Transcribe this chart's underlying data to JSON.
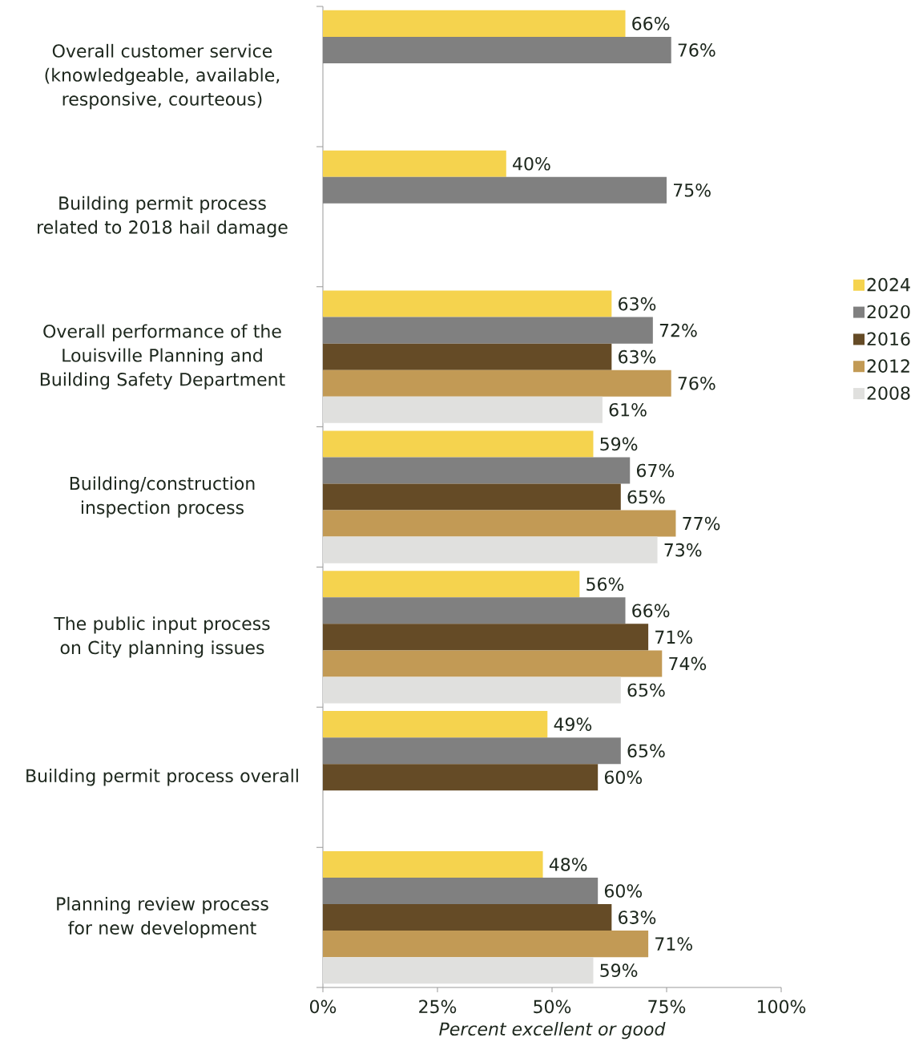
{
  "chart_data": {
    "type": "bar",
    "orientation": "horizontal",
    "categories": [
      "Overall customer service (knowledgeable, available, responsive, courteous)",
      "Building permit process related to 2018 hail damage",
      "Overall performance of the Louisville Planning and Building Safety Department",
      "Building/construction inspection process",
      "The public input process on City planning issues",
      "Building permit process overall",
      "Planning review process for new development"
    ],
    "series": [
      {
        "name": "2024",
        "color": "#f5d34e",
        "values": [
          66,
          40,
          63,
          59,
          56,
          49,
          48
        ],
        "value_labels": [
          "66%",
          "40%",
          "63%",
          "59%",
          "56%",
          "49%",
          "48%"
        ]
      },
      {
        "name": "2020",
        "color": "#808080",
        "values": [
          76,
          75,
          72,
          67,
          66,
          65,
          60
        ],
        "value_labels": [
          "76%",
          "75%",
          "72%",
          "67%",
          "66%",
          "65%",
          "60%"
        ]
      },
      {
        "name": "2016",
        "color": "#654b26",
        "values": [
          null,
          null,
          63,
          65,
          71,
          60,
          63
        ],
        "value_labels": [
          null,
          null,
          "63%",
          "65%",
          "71%",
          "60%",
          "63%"
        ]
      },
      {
        "name": "2012",
        "color": "#c29a55",
        "values": [
          null,
          null,
          76,
          77,
          74,
          null,
          71
        ],
        "value_labels": [
          null,
          null,
          "76%",
          "77%",
          "74%",
          null,
          "71%"
        ]
      },
      {
        "name": "2008",
        "color": "#e0e0de",
        "values": [
          null,
          null,
          61,
          73,
          65,
          null,
          59
        ],
        "value_labels": [
          null,
          null,
          "61%",
          "73%",
          "65%",
          null,
          "59%"
        ]
      }
    ],
    "xlim": [
      0,
      100
    ],
    "xticks": [
      {
        "value": 0,
        "label": "0%"
      },
      {
        "value": 25,
        "label": "25%"
      },
      {
        "value": 50,
        "label": "50%"
      },
      {
        "value": 75,
        "label": "75%"
      },
      {
        "value": 100,
        "label": "100%"
      }
    ],
    "xlabel": "Percent excellent or good",
    "legend": "right"
  }
}
